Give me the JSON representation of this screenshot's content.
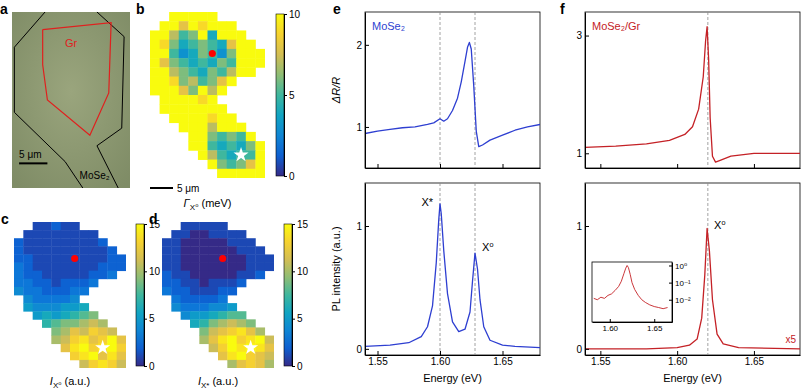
{
  "chart_data": [
    {
      "type": "image",
      "panel_label": "a",
      "graphene_label": "Gr",
      "flake_label": "MoSe₂",
      "scale_bar": "5 μm"
    },
    {
      "type": "heatmap",
      "panel_label": "b",
      "scale_bar": "5 μm",
      "cells": [
        [
          null,
          null,
          10,
          10,
          10,
          10,
          10,
          null,
          null,
          null,
          null,
          null
        ],
        [
          null,
          10,
          10,
          8,
          10,
          9,
          10,
          10,
          10,
          null,
          null,
          null
        ],
        [
          10,
          10,
          7,
          5,
          6,
          10,
          4,
          10,
          10,
          10,
          null,
          null
        ],
        [
          10,
          9,
          6,
          4,
          5,
          6,
          5,
          4,
          8,
          10,
          10,
          null
        ],
        [
          10,
          10,
          5,
          3,
          4,
          6,
          5,
          3,
          6,
          10,
          10,
          10
        ],
        [
          10,
          8,
          6,
          5,
          4,
          5,
          4,
          6,
          5,
          10,
          10,
          10
        ],
        [
          10,
          10,
          7,
          6,
          5,
          4,
          6,
          5,
          7,
          10,
          10,
          null
        ],
        [
          10,
          10,
          9,
          6,
          7,
          5,
          6,
          8,
          10,
          null,
          null,
          null
        ],
        [
          10,
          10,
          10,
          8,
          6,
          10,
          7,
          10,
          null,
          null,
          null,
          null
        ],
        [
          null,
          10,
          10,
          10,
          10,
          9,
          10,
          null,
          null,
          null,
          null,
          null
        ],
        [
          null,
          10,
          10,
          10,
          10,
          10,
          10,
          10,
          null,
          null,
          null,
          null
        ],
        [
          null,
          null,
          10,
          10,
          10,
          10,
          9,
          10,
          10,
          null,
          null,
          null
        ],
        [
          null,
          null,
          null,
          10,
          10,
          10,
          7,
          10,
          10,
          10,
          null,
          null
        ],
        [
          null,
          null,
          null,
          null,
          10,
          10,
          6,
          5,
          6,
          5,
          10,
          null
        ],
        [
          null,
          null,
          null,
          null,
          10,
          10,
          5,
          4,
          5,
          4,
          6,
          10
        ],
        [
          null,
          null,
          null,
          null,
          null,
          10,
          7,
          5,
          4,
          5,
          5,
          10
        ],
        [
          null,
          null,
          null,
          null,
          null,
          null,
          10,
          6,
          5,
          6,
          8,
          10
        ],
        [
          null,
          null,
          null,
          null,
          null,
          null,
          null,
          10,
          10,
          10,
          10,
          10
        ]
      ],
      "colorbar": {
        "range": [
          0,
          10
        ],
        "ticks": [
          0,
          5,
          10
        ],
        "label": [
          "Γ",
          "X⁰",
          " (meV)"
        ]
      },
      "markers": [
        {
          "row": 4,
          "col": 6,
          "marker": "circle",
          "color": "red"
        },
        {
          "row": 15,
          "col": 9,
          "marker": "star",
          "color": "white"
        }
      ]
    },
    {
      "type": "heatmap",
      "panel_label": "c",
      "cells": [
        [
          null,
          null,
          1,
          1,
          2,
          1,
          1,
          null,
          null,
          null,
          null,
          null
        ],
        [
          null,
          1,
          1,
          1,
          1,
          1,
          1,
          1,
          1,
          null,
          null,
          null
        ],
        [
          2,
          1,
          1,
          1,
          1,
          1,
          1,
          1,
          1,
          2,
          null,
          null
        ],
        [
          2,
          1,
          1,
          1,
          1,
          1,
          1,
          1,
          1,
          1,
          2,
          null
        ],
        [
          2,
          2,
          1,
          1,
          1,
          1,
          1,
          1,
          1,
          1,
          2,
          2
        ],
        [
          3,
          2,
          1,
          1,
          1,
          1,
          1,
          1,
          1,
          2,
          2,
          2
        ],
        [
          3,
          2,
          2,
          1,
          1,
          1,
          1,
          1,
          2,
          2,
          3,
          null
        ],
        [
          3,
          3,
          2,
          2,
          1,
          2,
          2,
          2,
          3,
          null,
          null,
          null
        ],
        [
          4,
          3,
          3,
          2,
          2,
          2,
          3,
          3,
          null,
          null,
          null,
          null
        ],
        [
          null,
          4,
          3,
          3,
          3,
          3,
          4,
          null,
          null,
          null,
          null,
          null
        ],
        [
          null,
          5,
          4,
          4,
          4,
          5,
          5,
          6,
          null,
          null,
          null,
          null
        ],
        [
          null,
          null,
          5,
          6,
          5,
          6,
          7,
          8,
          9,
          null,
          null,
          null
        ],
        [
          null,
          null,
          null,
          7,
          8,
          9,
          9,
          10,
          11,
          10,
          null,
          null
        ],
        [
          null,
          null,
          null,
          null,
          9,
          10,
          12,
          11,
          13,
          12,
          11,
          null
        ],
        [
          null,
          null,
          null,
          null,
          10,
          11,
          13,
          14,
          12,
          13,
          15,
          12
        ],
        [
          null,
          null,
          null,
          null,
          null,
          12,
          14,
          15,
          13,
          14,
          15,
          13
        ],
        [
          null,
          null,
          null,
          null,
          null,
          null,
          13,
          14,
          15,
          12,
          14,
          12
        ],
        [
          null,
          null,
          null,
          null,
          null,
          null,
          null,
          11,
          13,
          14,
          13,
          11
        ]
      ],
      "colorbar": {
        "range": [
          0,
          15
        ],
        "ticks": [
          0,
          5,
          10,
          15
        ],
        "label": [
          "I",
          "X⁰",
          " (a.u.)"
        ]
      },
      "markers": [
        {
          "row": 4,
          "col": 6,
          "marker": "circle",
          "color": "red"
        },
        {
          "row": 15,
          "col": 9,
          "marker": "star",
          "color": "white"
        }
      ]
    },
    {
      "type": "heatmap",
      "panel_label": "d",
      "cells": [
        [
          null,
          null,
          1,
          1,
          1,
          1,
          1,
          null,
          null,
          null,
          null,
          null
        ],
        [
          null,
          1,
          1,
          0,
          0,
          1,
          1,
          1,
          1,
          null,
          null,
          null
        ],
        [
          1,
          1,
          0,
          0,
          0,
          0,
          0,
          1,
          1,
          1,
          null,
          null
        ],
        [
          1,
          1,
          0,
          0,
          0,
          0,
          0,
          0,
          1,
          1,
          1,
          null
        ],
        [
          1,
          1,
          0,
          0,
          0,
          0,
          0,
          0,
          0,
          1,
          1,
          1
        ],
        [
          1,
          1,
          0,
          0,
          0,
          0,
          0,
          0,
          0,
          1,
          1,
          1
        ],
        [
          2,
          1,
          1,
          0,
          0,
          0,
          0,
          0,
          1,
          1,
          2,
          null
        ],
        [
          2,
          2,
          1,
          1,
          0,
          1,
          1,
          1,
          2,
          null,
          null,
          null
        ],
        [
          3,
          2,
          2,
          1,
          1,
          1,
          2,
          2,
          null,
          null,
          null,
          null
        ],
        [
          null,
          3,
          2,
          2,
          2,
          2,
          3,
          null,
          null,
          null,
          null,
          null
        ],
        [
          null,
          4,
          3,
          3,
          3,
          4,
          4,
          5,
          null,
          null,
          null,
          null
        ],
        [
          null,
          null,
          4,
          5,
          5,
          6,
          7,
          8,
          8,
          null,
          null,
          null
        ],
        [
          null,
          null,
          null,
          6,
          7,
          9,
          10,
          11,
          10,
          9,
          null,
          null
        ],
        [
          null,
          null,
          null,
          null,
          9,
          11,
          12,
          13,
          14,
          12,
          10,
          null
        ],
        [
          null,
          null,
          null,
          null,
          10,
          12,
          14,
          15,
          13,
          14,
          15,
          11
        ],
        [
          null,
          null,
          null,
          null,
          null,
          11,
          13,
          15,
          14,
          15,
          14,
          12
        ],
        [
          null,
          null,
          null,
          null,
          null,
          null,
          12,
          14,
          15,
          13,
          12,
          11
        ],
        [
          null,
          null,
          null,
          null,
          null,
          null,
          null,
          10,
          12,
          13,
          12,
          10
        ]
      ],
      "colorbar": {
        "range": [
          0,
          15
        ],
        "ticks": [
          0,
          5,
          10,
          15
        ],
        "label": [
          "I",
          "X*",
          " (a.u.)"
        ]
      },
      "markers": [
        {
          "row": 4,
          "col": 6,
          "marker": "circle",
          "color": "red"
        },
        {
          "row": 15,
          "col": 9,
          "marker": "star",
          "color": "white"
        }
      ]
    },
    {
      "type": "line",
      "panel_label": "e",
      "label": "MoSe₂",
      "ylabel": "ΔR/R",
      "tick_labels": "y",
      "xlim": [
        1.54,
        1.68
      ],
      "xticks": [
        1.55,
        {
          "value": 1.6,
          "label": "1.60"
        },
        1.65
      ],
      "ylim": [
        0.5,
        2.4
      ],
      "yticks": [
        1,
        2
      ],
      "vlines": [
        1.6,
        1.628
      ],
      "x": [
        1.54,
        1.55,
        1.56,
        1.57,
        1.58,
        1.59,
        1.595,
        1.6,
        1.603,
        1.606,
        1.61,
        1.614,
        1.617,
        1.62,
        1.622,
        1.6235,
        1.625,
        1.627,
        1.629,
        1.631,
        1.634,
        1.64,
        1.65,
        1.66,
        1.67,
        1.68
      ],
      "series": [
        {
          "color": "#2e3fd1",
          "values": [
            0.92,
            0.95,
            0.97,
            0.99,
            1.0,
            1.03,
            1.05,
            1.1,
            1.07,
            1.1,
            1.2,
            1.35,
            1.55,
            1.8,
            1.97,
            2.03,
            1.95,
            1.5,
            0.95,
            0.76,
            0.78,
            0.84,
            0.9,
            0.96,
            1.0,
            1.03
          ]
        }
      ]
    },
    {
      "type": "line",
      "xlabel": "Energy (eV)",
      "ylabel": "PL intensity (a.u.)",
      "annotations": [
        "X*",
        "X⁰"
      ],
      "xlim": [
        1.54,
        1.68
      ],
      "xticks": [
        1.55,
        {
          "value": 1.6,
          "label": "1.60"
        },
        1.65
      ],
      "ylim": [
        -0.05,
        1.35
      ],
      "yticks": [
        0,
        1
      ],
      "vlines": [
        1.6,
        1.628
      ],
      "x": [
        1.54,
        1.56,
        1.575,
        1.585,
        1.59,
        1.594,
        1.597,
        1.599,
        1.6,
        1.601,
        1.603,
        1.606,
        1.61,
        1.615,
        1.62,
        1.624,
        1.626,
        1.628,
        1.63,
        1.632,
        1.635,
        1.64,
        1.65,
        1.66,
        1.68
      ],
      "series": [
        {
          "color": "#2e3fd1",
          "values": [
            0.02,
            0.03,
            0.05,
            0.1,
            0.18,
            0.35,
            0.7,
            1.05,
            1.18,
            1.1,
            0.8,
            0.45,
            0.22,
            0.14,
            0.16,
            0.3,
            0.55,
            0.78,
            0.65,
            0.4,
            0.18,
            0.07,
            0.03,
            0.02,
            0.01
          ]
        }
      ]
    },
    {
      "type": "line",
      "panel_label": "f",
      "label": "MoSe₂/Gr",
      "tick_labels": "y",
      "xlim": [
        1.54,
        1.68
      ],
      "xticks": [
        1.55,
        {
          "value": 1.6,
          "label": "1.60"
        },
        1.65
      ],
      "ylim": [
        0.75,
        3.4
      ],
      "yticks": [
        1,
        3
      ],
      "vlines": [
        1.62
      ],
      "x": [
        1.54,
        1.56,
        1.58,
        1.595,
        1.605,
        1.61,
        1.614,
        1.617,
        1.6185,
        1.6195,
        1.6205,
        1.6215,
        1.623,
        1.625,
        1.628,
        1.635,
        1.65,
        1.665,
        1.68
      ],
      "series": [
        {
          "color": "#c42126",
          "values": [
            1.1,
            1.12,
            1.16,
            1.22,
            1.32,
            1.45,
            1.75,
            2.3,
            2.9,
            3.15,
            2.6,
            1.6,
            0.95,
            0.85,
            0.88,
            0.95,
            1.0,
            1.0,
            1.0
          ]
        }
      ]
    },
    {
      "type": "line",
      "xlabel": "Energy (eV)",
      "annotations": [
        "X⁰",
        "x5"
      ],
      "xlim": [
        1.54,
        1.68
      ],
      "xticks": [
        1.55,
        {
          "value": 1.6,
          "label": "1.60"
        },
        1.65
      ],
      "ylim": [
        -0.05,
        1.35
      ],
      "yticks": [
        0,
        1
      ],
      "vlines": [
        1.62
      ],
      "x": [
        1.54,
        1.58,
        1.6,
        1.608,
        1.613,
        1.616,
        1.618,
        1.6195,
        1.621,
        1.623,
        1.626,
        1.63,
        1.64,
        1.68
      ],
      "series": [
        {
          "color": "#c42126",
          "values": [
            0.0,
            0.0,
            0.01,
            0.03,
            0.08,
            0.25,
            0.6,
            0.98,
            0.8,
            0.4,
            0.12,
            0.04,
            0.01,
            0.0
          ]
        }
      ]
    },
    {
      "type": "line",
      "log": "y",
      "xlim": [
        1.58,
        1.67
      ],
      "xticks": [
        {
          "value": 1.6,
          "label": "1.60"
        },
        1.65
      ],
      "ylim": [
        0.0005,
        1.6
      ],
      "yticks": [
        {
          "value": 0.01,
          "label": "10⁻²"
        },
        {
          "value": 0.1,
          "label": "10⁻¹"
        },
        {
          "value": 1,
          "label": "10⁰"
        }
      ],
      "x": [
        1.582,
        1.586,
        1.59,
        1.594,
        1.598,
        1.602,
        1.606,
        1.61,
        1.613,
        1.616,
        1.618,
        1.6195,
        1.621,
        1.623,
        1.625,
        1.628,
        1.632,
        1.636,
        1.64,
        1.645,
        1.65,
        1.655,
        1.66,
        1.665
      ],
      "series": [
        {
          "color": "#c42126",
          "values": [
            0.012,
            0.01,
            0.014,
            0.012,
            0.018,
            0.022,
            0.035,
            0.06,
            0.12,
            0.35,
            0.7,
            1.0,
            0.75,
            0.3,
            0.1,
            0.04,
            0.018,
            0.01,
            0.007,
            0.005,
            0.004,
            0.0035,
            0.003,
            0.0035
          ]
        }
      ]
    }
  ]
}
